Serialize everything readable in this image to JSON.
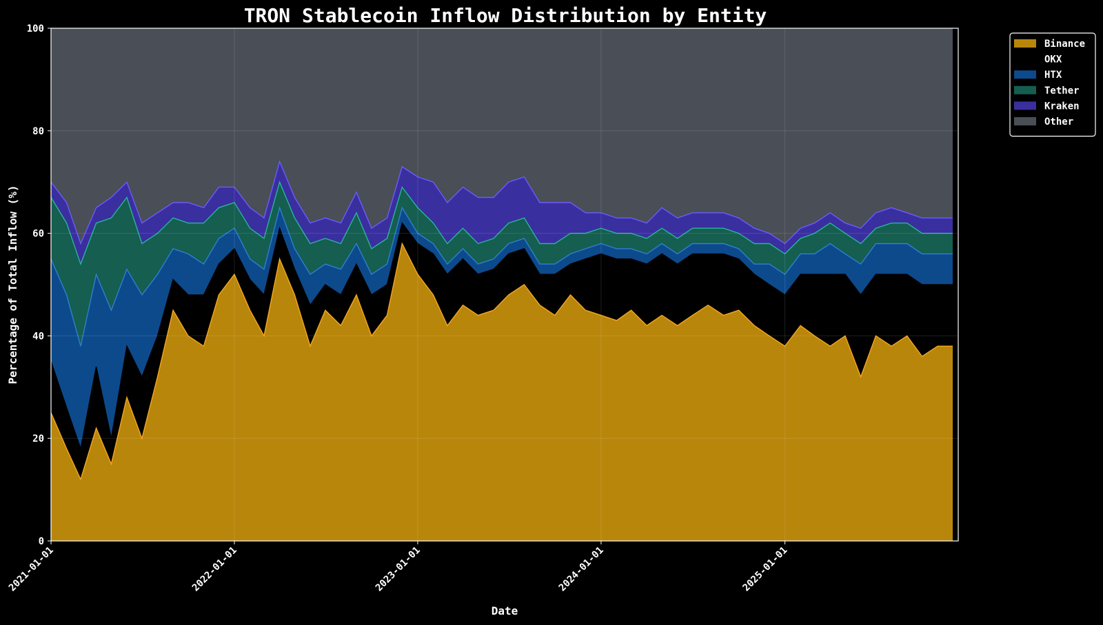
{
  "chart_data": {
    "type": "area",
    "stacked": true,
    "title": "TRON Stablecoin Inflow Distribution by Entity",
    "xlabel": "Date",
    "ylabel": "Percentage of Total Inflow (%)",
    "ylim": [
      0,
      100
    ],
    "yticks": [
      0,
      20,
      40,
      60,
      80,
      100
    ],
    "xlim": [
      "2021-01-01",
      "2025-12-12"
    ],
    "xticks": [
      "2021-01-01",
      "2022-01-01",
      "2023-01-01",
      "2024-01-01",
      "2025-01-01"
    ],
    "grid": true,
    "legend_position": "top-right outside",
    "x": [
      "2021-01-01",
      "2021-02-01",
      "2021-03-01",
      "2021-04-01",
      "2021-05-01",
      "2021-06-01",
      "2021-07-01",
      "2021-08-01",
      "2021-09-01",
      "2021-10-01",
      "2021-11-01",
      "2021-12-01",
      "2022-01-01",
      "2022-02-01",
      "2022-03-01",
      "2022-04-01",
      "2022-05-01",
      "2022-06-01",
      "2022-07-01",
      "2022-08-01",
      "2022-09-01",
      "2022-10-01",
      "2022-11-01",
      "2022-12-01",
      "2023-01-01",
      "2023-02-01",
      "2023-03-01",
      "2023-04-01",
      "2023-05-01",
      "2023-06-01",
      "2023-07-01",
      "2023-08-01",
      "2023-09-01",
      "2023-10-01",
      "2023-11-01",
      "2023-12-01",
      "2024-01-01",
      "2024-02-01",
      "2024-03-01",
      "2024-04-01",
      "2024-05-01",
      "2024-06-01",
      "2024-07-01",
      "2024-08-01",
      "2024-09-01",
      "2024-10-01",
      "2024-11-01",
      "2024-12-01",
      "2025-01-01",
      "2025-02-01",
      "2025-03-01",
      "2025-04-01",
      "2025-05-01",
      "2025-06-01",
      "2025-07-01",
      "2025-08-01",
      "2025-09-01",
      "2025-10-01",
      "2025-11-01",
      "2025-12-01"
    ],
    "series": [
      {
        "name": "Binance",
        "color": "#b8860b",
        "line_color": "#f5a623",
        "values": [
          25,
          18,
          12,
          22,
          15,
          28,
          20,
          32,
          45,
          40,
          38,
          48,
          52,
          45,
          40,
          55,
          48,
          38,
          45,
          42,
          48,
          40,
          44,
          58,
          52,
          48,
          42,
          46,
          44,
          45,
          48,
          50,
          46,
          44,
          48,
          45,
          44,
          43,
          45,
          42,
          44,
          42,
          44,
          46,
          44,
          45,
          42,
          40,
          38,
          42,
          40,
          38,
          40,
          32,
          40,
          38,
          40,
          36,
          38,
          38
        ]
      },
      {
        "name": "OKX",
        "color": "#000000",
        "line_color": "#000000",
        "values": [
          10,
          8,
          6,
          12,
          5,
          10,
          12,
          8,
          6,
          8,
          10,
          6,
          5,
          6,
          8,
          6,
          5,
          8,
          5,
          6,
          6,
          8,
          6,
          4,
          6,
          8,
          10,
          9,
          8,
          8,
          8,
          7,
          6,
          8,
          6,
          10,
          12,
          12,
          10,
          12,
          12,
          12,
          12,
          10,
          12,
          10,
          10,
          10,
          10,
          10,
          12,
          14,
          12,
          16,
          12,
          14,
          12,
          14,
          12,
          12
        ]
      },
      {
        "name": "HTX",
        "color": "#0d4a8c",
        "line_color": "#2f7fd0",
        "values": [
          20,
          22,
          20,
          18,
          25,
          15,
          16,
          12,
          6,
          8,
          6,
          5,
          4,
          4,
          5,
          4,
          4,
          6,
          4,
          5,
          4,
          4,
          4,
          3,
          2,
          2,
          2,
          2,
          2,
          2,
          2,
          2,
          2,
          2,
          2,
          2,
          2,
          2,
          2,
          2,
          2,
          2,
          2,
          2,
          2,
          2,
          2,
          4,
          4,
          4,
          4,
          6,
          4,
          6,
          6,
          6,
          6,
          6,
          6,
          6
        ]
      },
      {
        "name": "Tether",
        "color": "#155e50",
        "line_color": "#2bb39a",
        "values": [
          12,
          14,
          16,
          10,
          18,
          14,
          10,
          8,
          6,
          6,
          8,
          6,
          5,
          6,
          6,
          5,
          6,
          6,
          5,
          5,
          6,
          5,
          5,
          4,
          5,
          4,
          4,
          4,
          4,
          4,
          4,
          4,
          4,
          4,
          4,
          3,
          3,
          3,
          3,
          3,
          3,
          3,
          3,
          3,
          3,
          3,
          4,
          4,
          4,
          3,
          4,
          4,
          4,
          4,
          3,
          4,
          4,
          4,
          4,
          4
        ]
      },
      {
        "name": "Kraken",
        "color": "#3a2f9e",
        "line_color": "#6a5cff",
        "values": [
          3,
          4,
          4,
          3,
          4,
          3,
          4,
          4,
          3,
          4,
          3,
          4,
          3,
          4,
          4,
          4,
          4,
          4,
          4,
          4,
          4,
          4,
          4,
          4,
          6,
          8,
          8,
          8,
          9,
          8,
          8,
          8,
          8,
          8,
          6,
          4,
          3,
          3,
          3,
          3,
          4,
          4,
          3,
          3,
          3,
          3,
          3,
          2,
          2,
          2,
          2,
          2,
          2,
          3,
          3,
          3,
          2,
          3,
          3,
          3
        ]
      },
      {
        "name": "Other",
        "color": "#4a4e56",
        "line_color": "#4a4e56",
        "values": [
          30,
          34,
          42,
          35,
          33,
          30,
          38,
          36,
          34,
          34,
          35,
          31,
          31,
          35,
          37,
          26,
          33,
          38,
          37,
          38,
          32,
          39,
          37,
          27,
          29,
          30,
          34,
          31,
          33,
          33,
          30,
          29,
          34,
          34,
          34,
          36,
          36,
          37,
          37,
          38,
          35,
          37,
          36,
          36,
          36,
          37,
          39,
          40,
          42,
          39,
          38,
          36,
          38,
          39,
          36,
          35,
          36,
          37,
          37,
          37
        ]
      }
    ]
  }
}
